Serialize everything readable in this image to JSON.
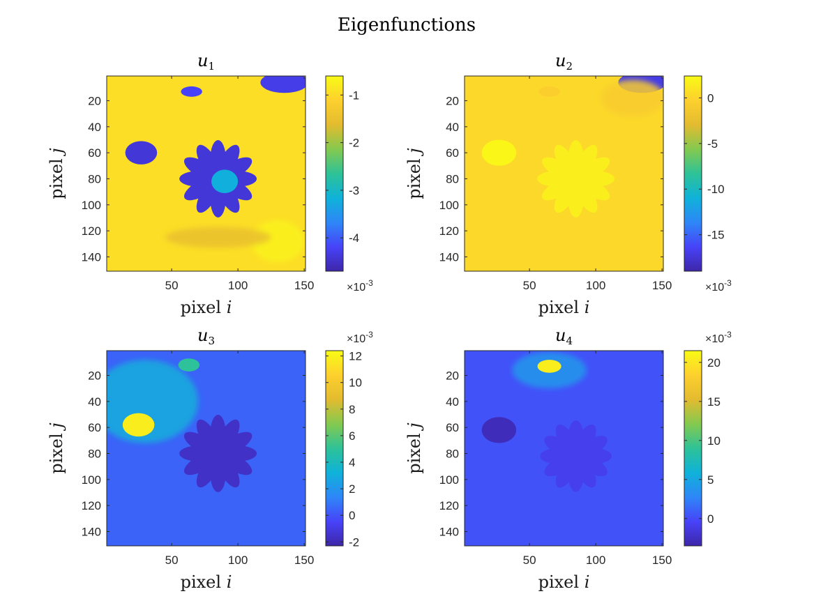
{
  "figure": {
    "title": "Eigenfunctions"
  },
  "colormap": [
    "#3e26a8",
    "#4743f9",
    "#2e87f7",
    "#0fb2d9",
    "#2ec297",
    "#84c94f",
    "#e3bb2f",
    "#fdd02e",
    "#f9fb15"
  ],
  "chart_data": [
    {
      "type": "heatmap",
      "title": "u",
      "title_subscript": "1",
      "xlabel": "pixel",
      "xlabel_var": "i",
      "ylabel": "pixel",
      "ylabel_var": "j",
      "xlim": [
        1,
        151
      ],
      "ylim": [
        1,
        151
      ],
      "xticks": [
        50,
        100,
        150
      ],
      "yticks": [
        20,
        40,
        60,
        80,
        100,
        120,
        140
      ],
      "y_reversed": true,
      "colorbar": {
        "clim": [
          -4.7,
          -0.6
        ],
        "ticks": [
          -4,
          -3,
          -2,
          -1
        ],
        "tick_labels": [
          "-4",
          "-3",
          "-2",
          "-1"
        ],
        "exponent": "-3",
        "exponent_position": "bottom"
      },
      "background_value": -0.95,
      "regions": [
        {
          "feature": "flower-head",
          "cx": 85,
          "cy": 80,
          "rx": 35,
          "ry": 27,
          "value": -4.4,
          "petals": 12
        },
        {
          "feature": "flower-center",
          "cx": 90,
          "cy": 82,
          "rx": 10,
          "ry": 9,
          "value": -3.2
        },
        {
          "feature": "top-right-blob",
          "cx": 135,
          "cy": 6,
          "rx": 18,
          "ry": 8,
          "value": -4.3
        },
        {
          "feature": "left-blob",
          "cx": 27,
          "cy": 60,
          "rx": 12,
          "ry": 9,
          "value": -4.4
        },
        {
          "feature": "top-blob",
          "cx": 65,
          "cy": 13,
          "rx": 8,
          "ry": 4,
          "value": -4.2
        },
        {
          "feature": "bright-corner",
          "cx": 130,
          "cy": 128,
          "rx": 20,
          "ry": 16,
          "value": -0.7
        },
        {
          "feature": "green-band",
          "cx": 85,
          "cy": 125,
          "rx": 40,
          "ry": 8,
          "value": -1.5
        }
      ]
    },
    {
      "type": "heatmap",
      "title": "u",
      "title_subscript": "2",
      "xlabel": "pixel",
      "xlabel_var": "i",
      "ylabel": "pixel",
      "ylabel_var": "j",
      "xlim": [
        1,
        151
      ],
      "ylim": [
        1,
        151
      ],
      "xticks": [
        50,
        100,
        150
      ],
      "yticks": [
        20,
        40,
        60,
        80,
        100,
        120,
        140
      ],
      "y_reversed": true,
      "colorbar": {
        "clim": [
          -19,
          2.4
        ],
        "ticks": [
          -15,
          -10,
          -5,
          0
        ],
        "tick_labels": [
          "-15",
          "-10",
          "-5",
          "0"
        ],
        "exponent": "-3",
        "exponent_position": "bottom"
      },
      "background_value": 0.2,
      "regions": [
        {
          "feature": "top-right-blob",
          "cx": 135,
          "cy": 6,
          "rx": 18,
          "ry": 8,
          "value": -17
        },
        {
          "feature": "top-right-halo",
          "cx": 128,
          "cy": 18,
          "rx": 24,
          "ry": 14,
          "value": -0.8
        },
        {
          "feature": "flower-head",
          "cx": 85,
          "cy": 80,
          "rx": 35,
          "ry": 27,
          "value": 1.6,
          "petals": 12
        },
        {
          "feature": "left-blob",
          "cx": 27,
          "cy": 60,
          "rx": 13,
          "ry": 10,
          "value": 2.1
        },
        {
          "feature": "top-blob",
          "cx": 65,
          "cy": 13,
          "rx": 8,
          "ry": 4,
          "value": -0.5
        }
      ]
    },
    {
      "type": "heatmap",
      "title": "u",
      "title_subscript": "3",
      "xlabel": "pixel",
      "xlabel_var": "i",
      "ylabel": "pixel",
      "ylabel_var": "j",
      "xlim": [
        1,
        151
      ],
      "ylim": [
        1,
        151
      ],
      "xticks": [
        50,
        100,
        150
      ],
      "yticks": [
        20,
        40,
        60,
        80,
        100,
        120,
        140
      ],
      "y_reversed": true,
      "colorbar": {
        "clim": [
          -2.3,
          12.4
        ],
        "ticks": [
          -2,
          0,
          2,
          4,
          6,
          8,
          10,
          12
        ],
        "tick_labels": [
          "-2",
          "0",
          "2",
          "4",
          "6",
          "8",
          "10",
          "12"
        ],
        "exponent": "-3",
        "exponent_position": "top"
      },
      "background_value": 0.4,
      "regions": [
        {
          "feature": "upper-left-glow",
          "cx": 30,
          "cy": 40,
          "rx": 40,
          "ry": 32,
          "value": 3.0
        },
        {
          "feature": "left-blob",
          "cx": 25,
          "cy": 58,
          "rx": 12,
          "ry": 9,
          "value": 11.8
        },
        {
          "feature": "top-blob",
          "cx": 63,
          "cy": 12,
          "rx": 8,
          "ry": 5,
          "value": 5.0
        },
        {
          "feature": "flower-head",
          "cx": 85,
          "cy": 80,
          "rx": 35,
          "ry": 27,
          "value": -1.6,
          "petals": 12
        }
      ]
    },
    {
      "type": "heatmap",
      "title": "u",
      "title_subscript": "4",
      "xlabel": "pixel",
      "xlabel_var": "i",
      "ylabel": "pixel",
      "ylabel_var": "j",
      "xlim": [
        1,
        151
      ],
      "ylim": [
        1,
        151
      ],
      "xticks": [
        50,
        100,
        150
      ],
      "yticks": [
        20,
        40,
        60,
        80,
        100,
        120,
        140
      ],
      "y_reversed": true,
      "colorbar": {
        "clim": [
          -3.5,
          21.5
        ],
        "ticks": [
          0,
          5,
          10,
          15,
          20
        ],
        "tick_labels": [
          "0",
          "5",
          "10",
          "15",
          "20"
        ],
        "exponent": "-3",
        "exponent_position": "top"
      },
      "background_value": 0.3,
      "regions": [
        {
          "feature": "top-glow",
          "cx": 65,
          "cy": 16,
          "rx": 28,
          "ry": 14,
          "value": 4.0
        },
        {
          "feature": "top-blob",
          "cx": 65,
          "cy": 13,
          "rx": 9,
          "ry": 5,
          "value": 20.5
        },
        {
          "feature": "left-blob",
          "cx": 27,
          "cy": 62,
          "rx": 13,
          "ry": 10,
          "value": -2.8
        },
        {
          "feature": "flower-head",
          "cx": 85,
          "cy": 82,
          "rx": 35,
          "ry": 25,
          "value": -0.8,
          "petals": 12
        }
      ]
    }
  ]
}
